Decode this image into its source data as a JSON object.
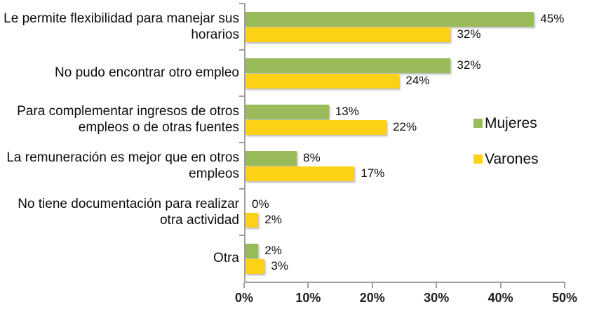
{
  "chart_data": {
    "type": "bar",
    "orientation": "horizontal",
    "title": "",
    "xlabel": "",
    "ylabel": "",
    "xlim": [
      0,
      50
    ],
    "x_tick_labels": [
      "0%",
      "10%",
      "20%",
      "30%",
      "40%",
      "50%"
    ],
    "grid": false,
    "legend_position": "right-middle",
    "value_suffix": "%",
    "categories": [
      "Le permite flexibilidad para manejar sus horarios",
      "No pudo encontrar otro empleo",
      "Para complementar ingresos de otros empleos o de otras fuentes",
      "La remuneración es mejor que en otros empleos",
      "No tiene documentación para realizar otra actividad",
      "Otra"
    ],
    "series": [
      {
        "name": "Mujeres",
        "color": "#9ABB59",
        "values": [
          45,
          32,
          13,
          8,
          0,
          2
        ]
      },
      {
        "name": "Varones",
        "color": "#FCD116",
        "values": [
          32,
          24,
          22,
          17,
          2,
          3
        ]
      }
    ],
    "data_labels": {
      "Mujeres": [
        "45%",
        "32%",
        "13%",
        "8%",
        "0%",
        "2%"
      ],
      "Varones": [
        "32%",
        "24%",
        "22%",
        "17%",
        "2%",
        "3%"
      ]
    },
    "axis_color": "#9e9e9e"
  }
}
